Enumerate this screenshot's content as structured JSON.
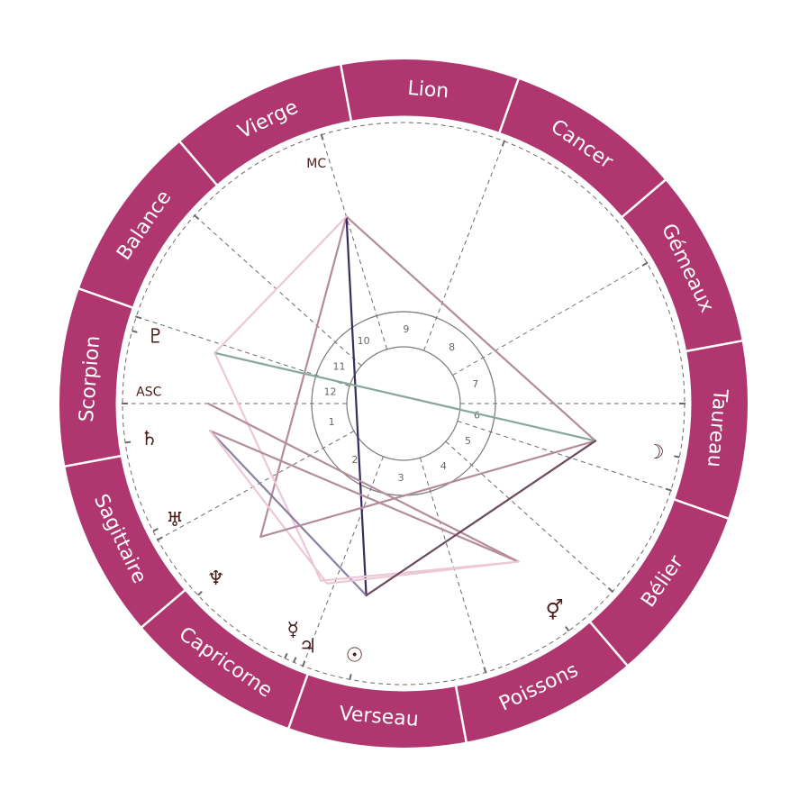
{
  "colors": {
    "ring": "#b0366f",
    "separator": "#ffffff",
    "dashed": "#6a6a6a",
    "circle": "#7a7a7a",
    "glyph": "#4a1c1c"
  },
  "signs": [
    "Bélier",
    "Taureau",
    "Gémeaux",
    "Cancer",
    "Lion",
    "Vierge",
    "Balance",
    "Scorpion",
    "Sagittaire",
    "Capricorne",
    "Verseau",
    "Poissons"
  ],
  "ascendant_longitude": 229.5,
  "angles": [
    {
      "label": "ASC",
      "longitude": 229.5
    },
    {
      "label": "MC",
      "longitude": 156.5
    }
  ],
  "house_cusps": [
    229.5,
    258.5,
    298.5,
    336.5,
    7.5,
    31.5,
    49.5,
    79.5,
    118.5,
    156.5,
    187.5,
    211.5
  ],
  "house_numbers": [
    "1",
    "2",
    "3",
    "4",
    "5",
    "6",
    "7",
    "8",
    "9",
    "10",
    "11",
    "12"
  ],
  "planets": [
    {
      "id": "pluto",
      "glyph": "♇",
      "longitude": 214.5,
      "icon": "pluto-icon"
    },
    {
      "id": "saturn",
      "glyph": "♄",
      "longitude": 237.5,
      "icon": "saturn-icon"
    },
    {
      "id": "uranus",
      "glyph": "♅",
      "longitude": 256.5,
      "icon": "uranus-icon"
    },
    {
      "id": "neptune",
      "glyph": "♆",
      "longitude": 272.5,
      "icon": "neptune-icon"
    },
    {
      "id": "mercury",
      "glyph": "☿",
      "longitude": 294.5,
      "icon": "mercury-icon"
    },
    {
      "id": "jupiter",
      "glyph": "♃",
      "longitude": 296.5,
      "icon": "jupiter-icon"
    },
    {
      "id": "sun",
      "glyph": "☉",
      "longitude": 308.5,
      "icon": "sun-icon"
    },
    {
      "id": "venus-mars",
      "glyph": "⚥",
      "longitude": 355.5,
      "icon": "venus-mars-icon"
    },
    {
      "id": "moon",
      "glyph": "☽",
      "longitude": 38.5,
      "icon": "moon-icon"
    }
  ],
  "aspects": [
    {
      "from": "MC",
      "to": "moon",
      "color": "#b48c9c"
    },
    {
      "from": "MC",
      "to": "neptune",
      "color": "#b48c9c"
    },
    {
      "from": "MC",
      "to": "sun",
      "color": "#3b2a60"
    },
    {
      "from": "pluto",
      "to": "MC",
      "color": "#ecc8d6"
    },
    {
      "from": "pluto",
      "to": "moon",
      "color": "#88a89a"
    },
    {
      "from": "pluto",
      "to": "mercury",
      "color": "#ecc8d6"
    },
    {
      "from": "ASC",
      "to": "venus-mars",
      "color": "#b48c9c"
    },
    {
      "from": "saturn",
      "to": "venus-mars",
      "color": "#b48c9c"
    },
    {
      "from": "saturn",
      "to": "sun",
      "color": "#8a80a2"
    },
    {
      "from": "saturn",
      "to": "jupiter",
      "color": "#ecc8d6"
    },
    {
      "from": "mercury",
      "to": "venus-mars",
      "color": "#ecc8d6"
    },
    {
      "from": "jupiter",
      "to": "venus-mars",
      "color": "#ecc8d6"
    },
    {
      "from": "neptune",
      "to": "moon",
      "color": "#b48c9c"
    },
    {
      "from": "sun",
      "to": "moon",
      "color": "#6e4a5e"
    }
  ]
}
